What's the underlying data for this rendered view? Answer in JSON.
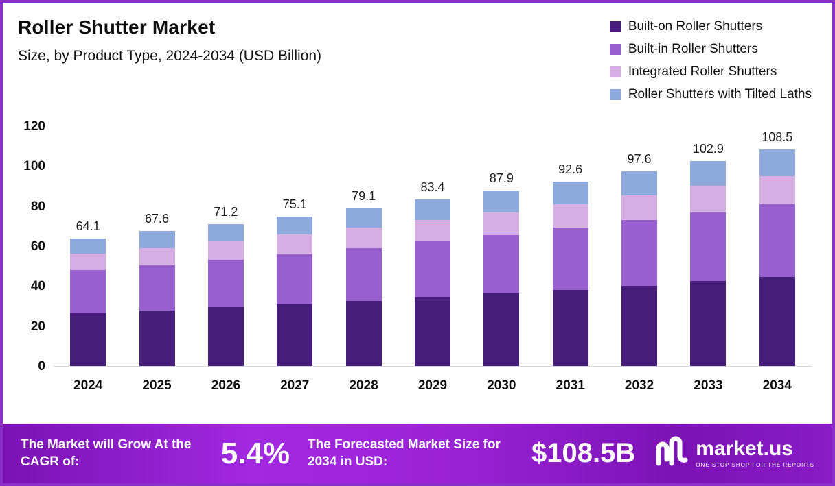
{
  "header": {
    "title": "Roller Shutter Market",
    "subtitle": "Size, by Product Type, 2024-2034 (USD Billion)"
  },
  "legend": [
    {
      "label": "Built-on Roller Shutters",
      "color": "#471d7c"
    },
    {
      "label": "Built-in Roller Shutters",
      "color": "#9760ce"
    },
    {
      "label": "Integrated Roller Shutters",
      "color": "#d5aee4"
    },
    {
      "label": "Roller Shutters with Tilted Laths",
      "color": "#8ea9db"
    }
  ],
  "chart_data": {
    "type": "bar",
    "stacked": true,
    "title": "Roller Shutter Market Size, by Product Type, 2024-2034 (USD Billion)",
    "categories": [
      "2024",
      "2025",
      "2026",
      "2027",
      "2028",
      "2029",
      "2030",
      "2031",
      "2032",
      "2033",
      "2034"
    ],
    "totals": [
      64.1,
      67.6,
      71.2,
      75.1,
      79.1,
      83.4,
      87.9,
      92.6,
      97.6,
      102.9,
      108.5
    ],
    "series": [
      {
        "name": "Built-on Roller Shutters",
        "color": "#471d7c",
        "values": [
          26.5,
          27.9,
          29.4,
          31.0,
          32.7,
          34.5,
          36.3,
          38.3,
          40.3,
          42.5,
          44.8
        ]
      },
      {
        "name": "Built-in Roller Shutters",
        "color": "#9760ce",
        "values": [
          21.5,
          22.7,
          23.9,
          25.2,
          26.6,
          28.0,
          29.5,
          31.1,
          32.8,
          34.6,
          36.5
        ]
      },
      {
        "name": "Integrated Roller Shutters",
        "color": "#d5aee4",
        "values": [
          8.3,
          8.7,
          9.2,
          9.7,
          10.2,
          10.7,
          11.3,
          11.9,
          12.6,
          13.2,
          13.9
        ]
      },
      {
        "name": "Roller Shutters with Tilted Laths",
        "color": "#8ea9db",
        "values": [
          7.8,
          8.3,
          8.7,
          9.2,
          9.6,
          10.2,
          10.8,
          11.3,
          11.9,
          12.6,
          13.3
        ]
      }
    ],
    "y_ticks": [
      0,
      20,
      40,
      60,
      80,
      100,
      120
    ],
    "ylim": [
      0,
      120
    ],
    "xlabel": "",
    "ylabel": "",
    "grid": false,
    "legend_position": "top-right"
  },
  "footer": {
    "cagr_label": "The Market will Grow At the CAGR of:",
    "cagr_value": "5.4%",
    "forecast_label": "The Forecasted Market Size for 2034 in USD:",
    "forecast_value": "$108.5B",
    "logo_text": "market.us",
    "logo_tagline": "ONE STOP SHOP FOR THE REPORTS"
  },
  "colors": {
    "frame_border": "#8a2fc9",
    "footer_gradient_start": "#7a12b2",
    "footer_gradient_end": "#8a1cc6",
    "text": "#0d0d0d"
  }
}
